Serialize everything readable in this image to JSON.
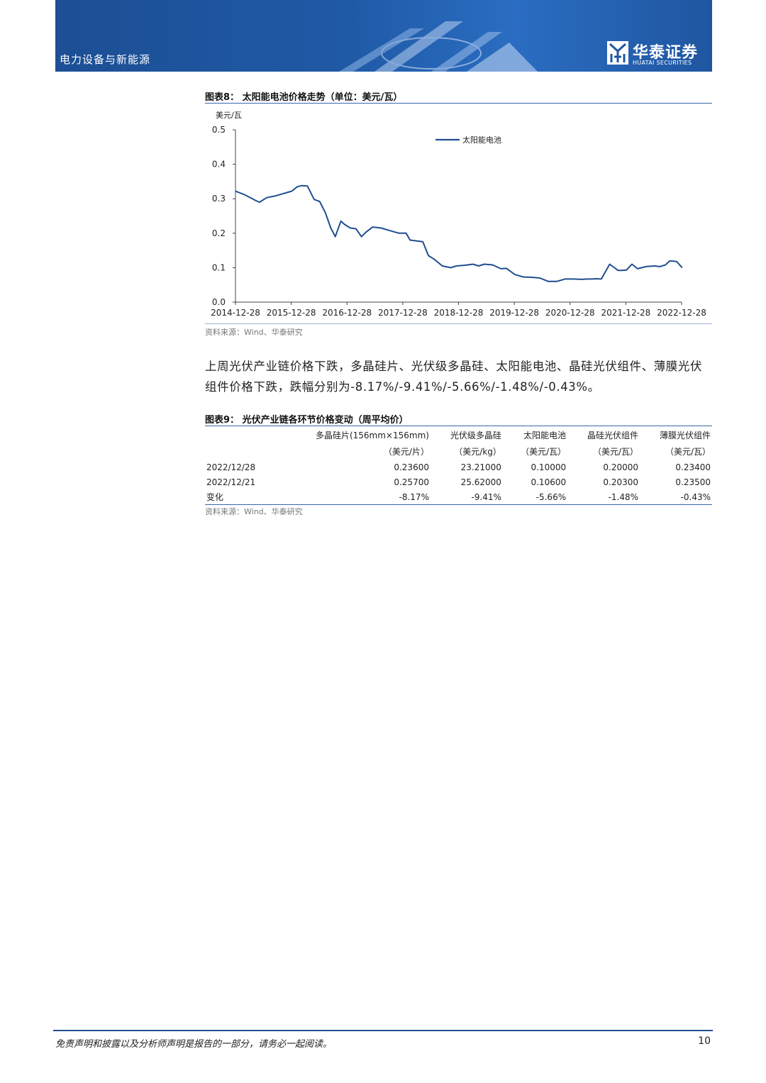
{
  "header": {
    "section": "电力设备与新能源",
    "logo_cn": "华泰证券",
    "logo_en": "HUATAI SECURITIES"
  },
  "figure8": {
    "title": "图表8：  太阳能电池价格走势（单位：美元/瓦）",
    "source": "资料来源：Wind、华泰研究"
  },
  "chart_data": {
    "type": "line",
    "title": "",
    "ylabel": "美元/瓦",
    "xlabel": "",
    "ylim": [
      0,
      0.5
    ],
    "yticks": [
      "0.0",
      "0.1",
      "0.2",
      "0.3",
      "0.4",
      "0.5"
    ],
    "xticks": [
      "2014-12-28",
      "2015-12-28",
      "2016-12-28",
      "2017-12-28",
      "2018-12-28",
      "2019-12-28",
      "2020-12-28",
      "2021-12-28",
      "2022-12-28"
    ],
    "legend": "top-center",
    "grid": false,
    "color": "#1f4e8f",
    "series": [
      {
        "name": "太阳能电池",
        "x": [
          2014.99,
          2015.15,
          2015.35,
          2015.42,
          2015.55,
          2015.7,
          2015.85,
          2016.0,
          2016.1,
          2016.18,
          2016.28,
          2016.4,
          2016.5,
          2016.6,
          2016.7,
          2016.78,
          2016.88,
          2016.95,
          2017.05,
          2017.15,
          2017.25,
          2017.33,
          2017.45,
          2017.6,
          2017.75,
          2017.92,
          2018.05,
          2018.12,
          2018.22,
          2018.35,
          2018.45,
          2018.55,
          2018.7,
          2018.85,
          2018.95,
          2019.1,
          2019.25,
          2019.35,
          2019.45,
          2019.6,
          2019.75,
          2019.85,
          2020.0,
          2020.15,
          2020.3,
          2020.45,
          2020.6,
          2020.75,
          2020.9,
          2021.05,
          2021.2,
          2021.3,
          2021.4,
          2021.45,
          2021.55,
          2021.7,
          2021.85,
          2021.92,
          2022.0,
          2022.1,
          2022.2,
          2022.35,
          2022.5,
          2022.6,
          2022.7,
          2022.78,
          2022.9,
          2023.0
        ],
        "values": [
          0.322,
          0.312,
          0.295,
          0.29,
          0.303,
          0.308,
          0.315,
          0.322,
          0.335,
          0.338,
          0.337,
          0.298,
          0.292,
          0.26,
          0.215,
          0.19,
          0.235,
          0.225,
          0.215,
          0.213,
          0.19,
          0.203,
          0.218,
          0.215,
          0.208,
          0.2,
          0.2,
          0.18,
          0.178,
          0.175,
          0.135,
          0.125,
          0.105,
          0.1,
          0.105,
          0.107,
          0.11,
          0.105,
          0.11,
          0.108,
          0.097,
          0.098,
          0.08,
          0.073,
          0.072,
          0.07,
          0.06,
          0.06,
          0.067,
          0.067,
          0.066,
          0.067,
          0.067,
          0.068,
          0.067,
          0.11,
          0.092,
          0.092,
          0.093,
          0.11,
          0.097,
          0.103,
          0.105,
          0.103,
          0.108,
          0.12,
          0.118,
          0.1
        ]
      }
    ]
  },
  "paragraph": "上周光伏产业链价格下跌，多晶硅片、光伏级多晶硅、太阳能电池、晶硅光伏组件、薄膜光伏组件价格下跌，跌幅分别为-8.17%/-9.41%/-5.66%/-1.48%/-0.43%。",
  "figure9": {
    "title": "图表9：  光伏产业链各环节价格变动（周平均价）",
    "source": "资料来源：Wind、华泰研究",
    "columns": [
      "多晶硅片(156mm×156mm)",
      "光伏级多晶硅",
      "太阳能电池",
      "晶硅光伏组件",
      "薄膜光伏组件"
    ],
    "units": [
      "（美元/片）",
      "（美元/kg）",
      "（美元/瓦）",
      "（美元/瓦）",
      "（美元/瓦）"
    ],
    "rows": [
      {
        "label": "2022/12/28",
        "cells": [
          "0.23600",
          "23.21000",
          "0.10000",
          "0.20000",
          "0.23400"
        ]
      },
      {
        "label": "2022/12/21",
        "cells": [
          "0.25700",
          "25.62000",
          "0.10600",
          "0.20300",
          "0.23500"
        ]
      },
      {
        "label": "变化",
        "cells": [
          "-8.17%",
          "-9.41%",
          "-5.66%",
          "-1.48%",
          "-0.43%"
        ]
      }
    ]
  },
  "footer": {
    "disclaimer": "免责声明和披露以及分析师声明是报告的一部分，请务必一起阅读。",
    "page": "10"
  }
}
